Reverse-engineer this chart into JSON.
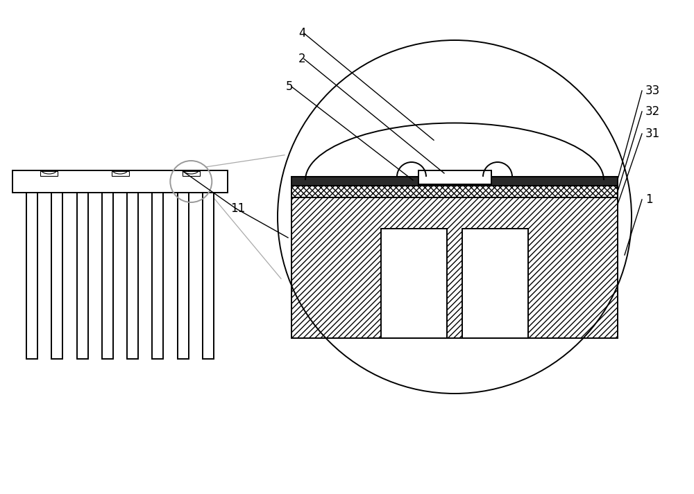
{
  "bg_color": "#ffffff",
  "line_color": "#000000",
  "fig_width": 10.0,
  "fig_height": 7.13,
  "dpi": 100
}
